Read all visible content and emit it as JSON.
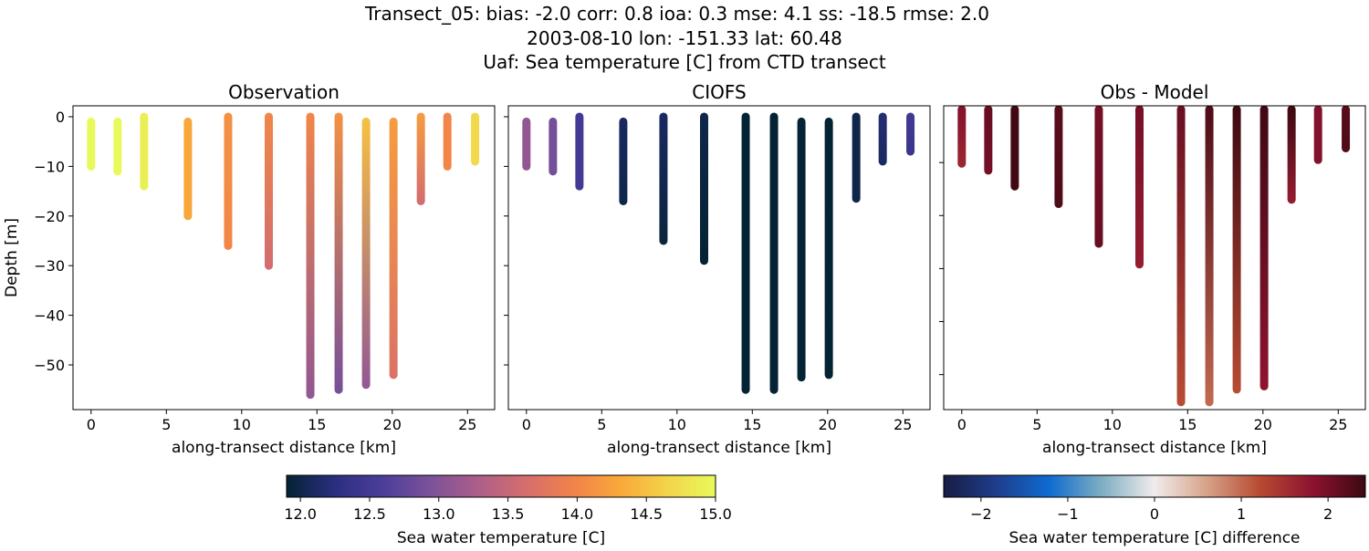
{
  "suptitle": [
    "Transect_05: bias: -2.0  corr: 0.8  ioa: 0.3  mse: 4.1  ss: -18.5  rmse: 2.0",
    "2003-08-10 lon: -151.33 lat: 60.48",
    "Uaf: Sea temperature [C] from CTD transect"
  ],
  "colors": {
    "thermal": [
      "#042333",
      "#2a2e80",
      "#4b3e9a",
      "#7b5199",
      "#ab5e8a",
      "#d56d6e",
      "#f0824a",
      "#f9a83a",
      "#f3d44a",
      "#e8fa5b"
    ],
    "balance": [
      "#181c43",
      "#1e3d8c",
      "#0f6bcf",
      "#7eaec2",
      "#f1ecec",
      "#d6a288",
      "#b74a32",
      "#8c1230",
      "#3c0912"
    ]
  },
  "chart_data": [
    {
      "type": "scatter",
      "title": "Observation",
      "xlabel": "along-transect distance [km]",
      "ylabel": "Depth [m]",
      "xlim": [
        -1.2,
        26.8
      ],
      "ylim": [
        -59,
        2.2
      ],
      "xticks": [
        0,
        5,
        10,
        15,
        20,
        25
      ],
      "yticks": [
        0,
        -10,
        -20,
        -30,
        -40,
        -50
      ],
      "colormap": "thermal",
      "clim": [
        11.9,
        15.0
      ],
      "casts": [
        {
          "x": 0.0,
          "top": -1,
          "bottom": -10,
          "value": [
            15.0,
            15.0
          ]
        },
        {
          "x": 1.76,
          "top": -1,
          "bottom": -11,
          "value": [
            15.0,
            15.0
          ]
        },
        {
          "x": 3.52,
          "top": 0,
          "bottom": -14,
          "value": [
            14.9,
            14.9
          ]
        },
        {
          "x": 6.43,
          "top": -1,
          "bottom": -20,
          "value": [
            14.3,
            14.3
          ]
        },
        {
          "x": 9.1,
          "top": 0,
          "bottom": -26,
          "value": [
            14.1,
            14.0
          ]
        },
        {
          "x": 11.8,
          "top": 0,
          "bottom": -30,
          "value": [
            14.0,
            13.6
          ]
        },
        {
          "x": 14.56,
          "top": 0,
          "bottom": -56,
          "value": [
            14.0,
            13.1
          ]
        },
        {
          "x": 16.44,
          "top": 0,
          "bottom": -55,
          "value": [
            14.1,
            12.9
          ]
        },
        {
          "x": 18.26,
          "top": -1,
          "bottom": -54,
          "value": [
            14.5,
            13.1
          ]
        },
        {
          "x": 20.08,
          "top": -1,
          "bottom": -52,
          "value": [
            14.2,
            13.7
          ]
        },
        {
          "x": 21.9,
          "top": 0,
          "bottom": -17,
          "value": [
            14.2,
            13.6
          ]
        },
        {
          "x": 23.66,
          "top": 0,
          "bottom": -10,
          "value": [
            14.0,
            14.0
          ]
        },
        {
          "x": 25.5,
          "top": 0,
          "bottom": -9,
          "value": [
            14.7,
            14.7
          ]
        }
      ]
    },
    {
      "type": "scatter",
      "title": "CIOFS",
      "xlabel": "along-transect distance [km]",
      "xlim": [
        -1.2,
        26.8
      ],
      "ylim": [
        -59,
        2.2
      ],
      "xticks": [
        0,
        5,
        10,
        15,
        20,
        25
      ],
      "yticks": [
        0,
        -10,
        -20,
        -30,
        -40,
        -50
      ],
      "colormap": "thermal",
      "clim": [
        11.9,
        15.0
      ],
      "casts": [
        {
          "x": 0.0,
          "top": -1,
          "bottom": -10,
          "value": [
            13.1,
            13.1
          ]
        },
        {
          "x": 1.76,
          "top": -1,
          "bottom": -11,
          "value": [
            12.9,
            12.9
          ]
        },
        {
          "x": 3.52,
          "top": 0,
          "bottom": -14,
          "value": [
            12.5,
            12.5
          ]
        },
        {
          "x": 6.43,
          "top": -1,
          "bottom": -17,
          "value": [
            12.1,
            12.0
          ]
        },
        {
          "x": 9.1,
          "top": 0,
          "bottom": -25,
          "value": [
            12.1,
            11.95
          ]
        },
        {
          "x": 11.8,
          "top": 0,
          "bottom": -29,
          "value": [
            12.0,
            11.9
          ]
        },
        {
          "x": 14.56,
          "top": 0,
          "bottom": -55,
          "value": [
            11.9,
            11.9
          ]
        },
        {
          "x": 16.44,
          "top": 0,
          "bottom": -55,
          "value": [
            11.9,
            11.9
          ]
        },
        {
          "x": 18.26,
          "top": -1,
          "bottom": -52.5,
          "value": [
            11.9,
            11.9
          ]
        },
        {
          "x": 20.08,
          "top": -1,
          "bottom": -52,
          "value": [
            11.9,
            11.9
          ]
        },
        {
          "x": 21.9,
          "top": 0,
          "bottom": -16.5,
          "value": [
            12.0,
            12.0
          ]
        },
        {
          "x": 23.66,
          "top": 0,
          "bottom": -9,
          "value": [
            12.2,
            12.1
          ]
        },
        {
          "x": 25.5,
          "top": 0,
          "bottom": -7,
          "value": [
            12.5,
            12.4
          ]
        }
      ]
    },
    {
      "type": "scatter",
      "title": "Obs - Model",
      "xlabel": "along-transect distance [km]",
      "xlim": [
        -1.2,
        26.8
      ],
      "ylim": [
        -56.6,
        0.7
      ],
      "xticks": [
        0,
        5,
        10,
        15,
        20,
        25
      ],
      "yticks": [
        -10,
        -20,
        -30,
        -40,
        -50
      ],
      "colormap": "balance",
      "clim": [
        -2.43,
        2.43
      ],
      "casts": [
        {
          "x": 0.0,
          "top": 0,
          "bottom": -10.2,
          "value": [
            1.9,
            1.6
          ]
        },
        {
          "x": 1.76,
          "top": 0,
          "bottom": -11.5,
          "value": [
            2.1,
            2.0
          ]
        },
        {
          "x": 3.52,
          "top": 0,
          "bottom": -14.5,
          "value": [
            2.4,
            2.4
          ]
        },
        {
          "x": 6.43,
          "top": 0,
          "bottom": -17.8,
          "value": [
            2.2,
            2.3
          ]
        },
        {
          "x": 9.1,
          "top": 0,
          "bottom": -25.3,
          "value": [
            2.0,
            2.1
          ]
        },
        {
          "x": 11.8,
          "top": 0,
          "bottom": -29.2,
          "value": [
            2.0,
            1.7
          ]
        },
        {
          "x": 14.56,
          "top": 0,
          "bottom": -55.2,
          "value": [
            2.1,
            1.2
          ]
        },
        {
          "x": 16.44,
          "top": 0,
          "bottom": -55.2,
          "value": [
            2.3,
            1.0
          ]
        },
        {
          "x": 18.26,
          "top": 0,
          "bottom": -52.8,
          "value": [
            2.6,
            1.2
          ]
        },
        {
          "x": 20.08,
          "top": 0,
          "bottom": -52.2,
          "value": [
            2.4,
            1.8
          ]
        },
        {
          "x": 21.9,
          "top": 0,
          "bottom": -17,
          "value": [
            2.5,
            1.7
          ]
        },
        {
          "x": 23.66,
          "top": 0,
          "bottom": -9.5,
          "value": [
            1.9,
            1.9
          ]
        },
        {
          "x": 25.5,
          "top": 0,
          "bottom": -7.3,
          "value": [
            2.2,
            2.3
          ]
        }
      ]
    }
  ],
  "colorbars": [
    {
      "label": "Sea water temperature [C]",
      "colormap": "thermal",
      "range": [
        11.9,
        15.0
      ],
      "ticks": [
        "12.0",
        "12.5",
        "13.0",
        "13.5",
        "14.0",
        "14.5",
        "15.0"
      ]
    },
    {
      "label": "Sea water temperature [C] difference",
      "colormap": "balance",
      "range": [
        -2.43,
        2.43
      ],
      "ticks": [
        "−2",
        "−1",
        "0",
        "1",
        "2"
      ]
    }
  ]
}
